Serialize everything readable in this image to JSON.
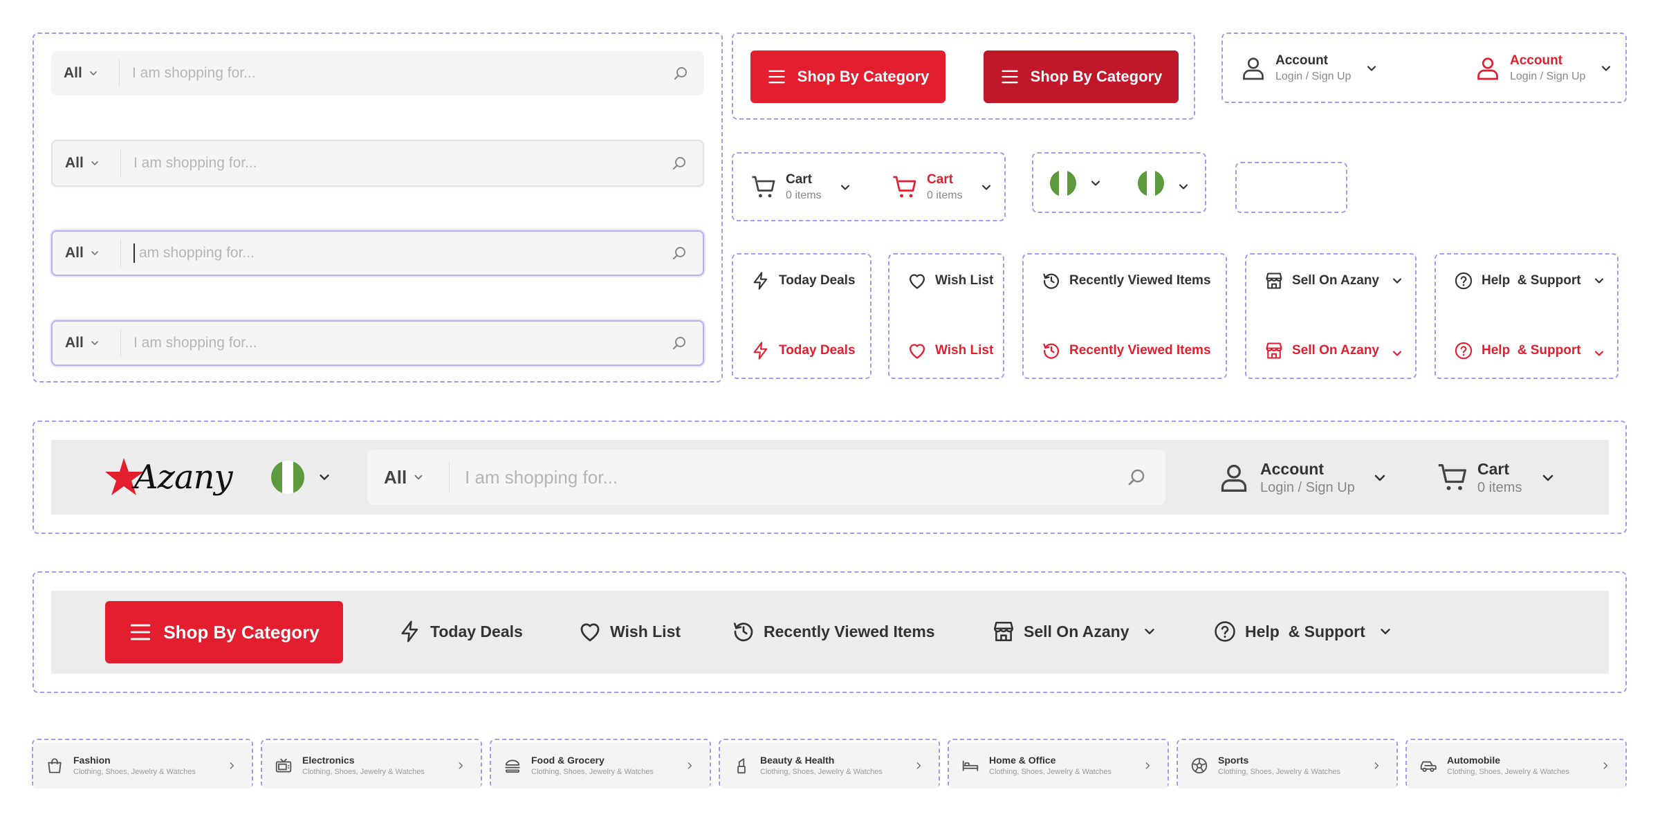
{
  "search": {
    "category": "All",
    "placeholder": "I am shopping for...",
    "focused_placeholder": "am shopping for..."
  },
  "category_button": {
    "label": "Shop By Category"
  },
  "account": {
    "title": "Account",
    "subtitle": "Login / Sign Up"
  },
  "cart": {
    "title": "Cart",
    "subtitle": "0 items"
  },
  "nav": {
    "today_deals": "Today Deals",
    "wish_list": "Wish List",
    "recently_viewed": "Recently Viewed Items",
    "sell": "Sell On Azany",
    "help": "Help  & Support"
  },
  "brand": {
    "name": "Azany"
  },
  "categories": [
    {
      "name": "Fashion",
      "sub": "Clothing, Shoes, Jewelry & Watches",
      "icon": "shopping-bag-icon"
    },
    {
      "name": "Electronics",
      "sub": "Clothing, Shoes, Jewelry & Watches",
      "icon": "tv-icon"
    },
    {
      "name": "Food & Grocery",
      "sub": "Clothing, Shoes, Jewelry & Watches",
      "icon": "burger-icon"
    },
    {
      "name": "Beauty & Health",
      "sub": "Clothing, Shoes, Jewelry & Watches",
      "icon": "lipstick-icon"
    },
    {
      "name": "Home & Office",
      "sub": "Clothing, Shoes, Jewelry & Watches",
      "icon": "bed-icon"
    },
    {
      "name": "Sports",
      "sub": "Clothing, Shoes, Jewelry & Watches",
      "icon": "soccer-ball-icon"
    },
    {
      "name": "Automobile",
      "sub": "Clothing, Shoes, Jewelry & Watches",
      "icon": "car-icon"
    }
  ],
  "colors": {
    "brand_red": "#e31e2f",
    "brand_red_dark": "#c0182a",
    "flag_green": "#5d9a3e",
    "bar_bg": "#ececec",
    "frame": "#a39af0"
  }
}
